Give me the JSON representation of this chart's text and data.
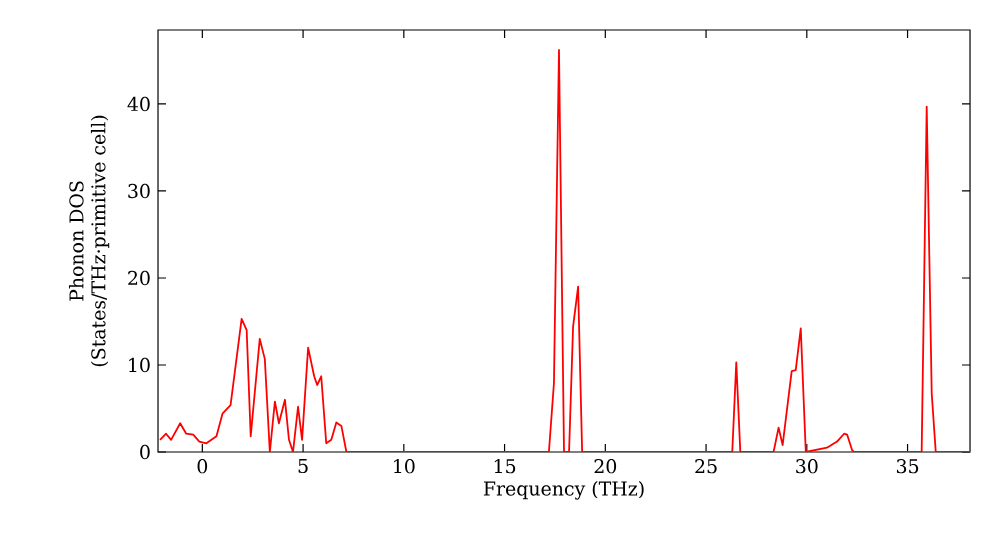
{
  "chart_data": {
    "type": "line",
    "xlabel": "Frequency (THz)",
    "ylabel": "Phonon DOS\n(States/THz·primitive cell)",
    "xlim": [
      -2.2,
      38.1
    ],
    "ylim": [
      0,
      48.5
    ],
    "xticks": [
      0,
      5,
      10,
      15,
      20,
      25,
      30,
      35
    ],
    "yticks": [
      0,
      10,
      20,
      30,
      40
    ],
    "grid": false,
    "marker": "none",
    "line_style": "solid",
    "series": [
      {
        "color": "#ff0000",
        "x": [
          -2.1,
          -1.8,
          -1.55,
          -1.1,
          -0.8,
          -0.45,
          -0.15,
          0.2,
          0.7,
          1.0,
          1.4,
          1.95,
          2.2,
          2.4,
          2.85,
          3.1,
          3.35,
          3.6,
          3.8,
          4.1,
          4.3,
          4.5,
          4.75,
          4.95,
          5.25,
          5.55,
          5.7,
          5.9,
          6.15,
          6.4,
          6.65,
          6.9,
          7.15,
          17.2,
          17.45,
          17.7,
          17.95,
          18.2,
          18.4,
          18.65,
          18.85,
          26.3,
          26.5,
          26.7,
          28.35,
          28.6,
          28.8,
          29.25,
          29.45,
          29.7,
          29.95,
          31.0,
          31.5,
          31.85,
          32.0,
          32.25,
          32.35,
          35.7,
          35.95,
          36.2,
          36.4,
          38.1
        ],
        "values": [
          1.4,
          2.1,
          1.4,
          3.3,
          2.1,
          2.0,
          1.2,
          1.0,
          1.8,
          4.4,
          5.4,
          15.3,
          14.0,
          1.8,
          13.0,
          10.7,
          0,
          5.8,
          3.3,
          6.0,
          1.4,
          0,
          5.2,
          1.4,
          12.0,
          8.7,
          7.7,
          8.7,
          1.0,
          1.4,
          3.4,
          3.0,
          0,
          0,
          7.9,
          46.2,
          0,
          0,
          14.4,
          19.0,
          0,
          0,
          10.3,
          0,
          0,
          2.8,
          0.8,
          9.3,
          9.4,
          14.2,
          0,
          0.5,
          1.2,
          2.1,
          2.0,
          0.2,
          0,
          0,
          39.7,
          6.7,
          0,
          0
        ]
      }
    ]
  }
}
